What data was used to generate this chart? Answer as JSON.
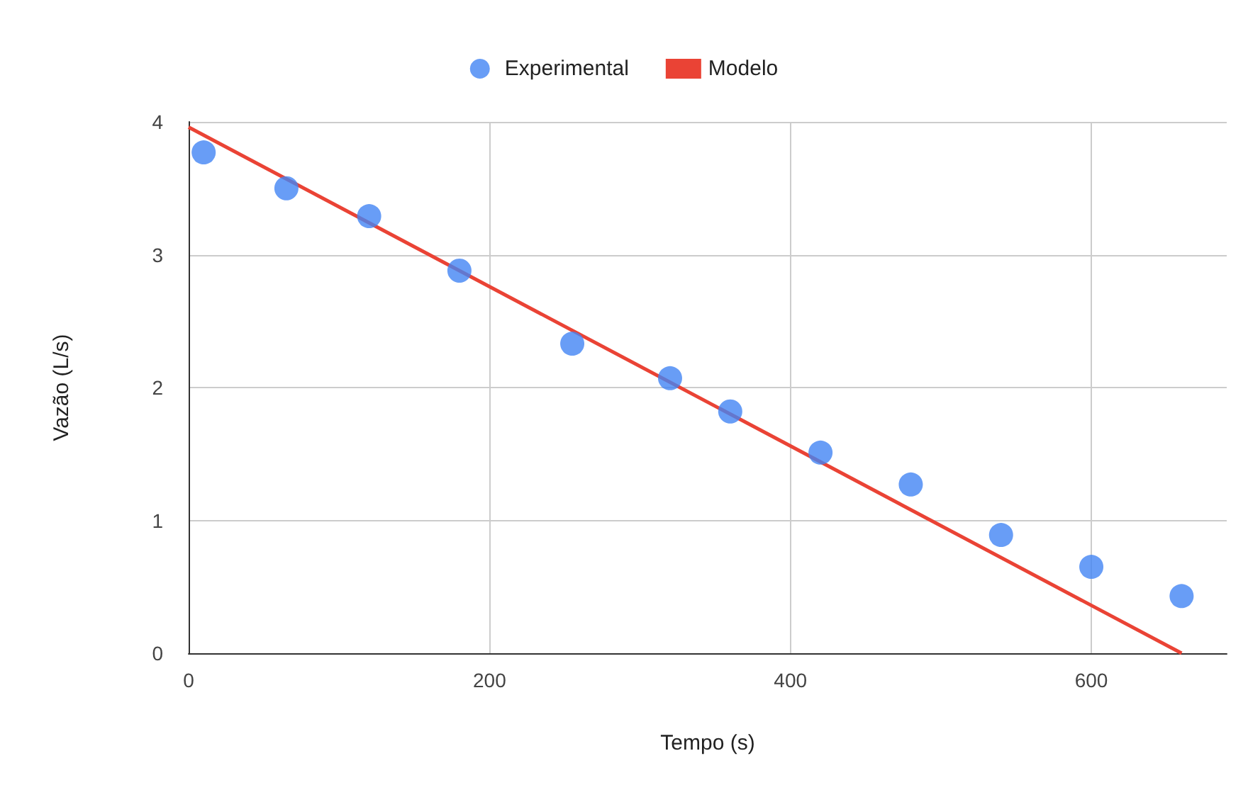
{
  "chart_data": {
    "type": "scatter",
    "xlabel": "Tempo (s)",
    "ylabel": "Vazão (L/s)",
    "series": [
      {
        "name": "Experimental",
        "color": "#4285f4",
        "marker": "circle",
        "x": [
          10,
          65,
          120,
          180,
          255,
          320,
          360,
          420,
          480,
          540,
          600,
          660
        ],
        "values": [
          3.77,
          3.5,
          3.29,
          2.88,
          2.33,
          2.07,
          1.82,
          1.51,
          1.27,
          0.89,
          0.65,
          0.43
        ]
      },
      {
        "name": "Modelo",
        "type": "line",
        "color": "#ea4335",
        "marker": "none",
        "x": [
          0,
          660
        ],
        "values": [
          3.96,
          0
        ]
      }
    ],
    "xlim": [
      0,
      690
    ],
    "xticks": [
      0,
      200,
      400,
      600
    ],
    "ylim": [
      0,
      4
    ],
    "yticks": [
      0,
      1,
      2,
      3,
      4
    ],
    "grid": true,
    "legend": "top",
    "line_style": "solid"
  }
}
